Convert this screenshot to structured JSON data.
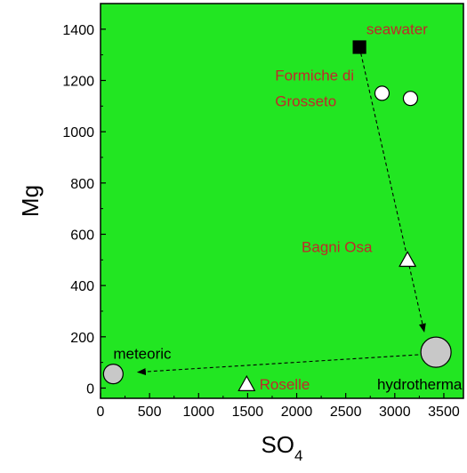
{
  "chart_data": {
    "type": "scatter",
    "title": "",
    "xlabel_main": "SO",
    "xlabel_sub": "4",
    "ylabel": "Mg",
    "xlim": [
      0,
      3700
    ],
    "ylim": [
      -40,
      1500
    ],
    "x_ticks": [
      0,
      500,
      1000,
      1500,
      2000,
      2500,
      3000,
      3500
    ],
    "y_ticks": [
      0,
      200,
      400,
      600,
      800,
      1000,
      1200,
      1400
    ],
    "grid": false,
    "background_color": "#22e622",
    "points": [
      {
        "id": "seawater",
        "x": 2640,
        "y": 1330,
        "marker": "square",
        "fill": "#000000",
        "size": "small"
      },
      {
        "id": "formiche-1",
        "x": 2870,
        "y": 1150,
        "marker": "circle",
        "fill": "#ffffff",
        "size": "small"
      },
      {
        "id": "formiche-2",
        "x": 3160,
        "y": 1130,
        "marker": "circle",
        "fill": "#ffffff",
        "size": "small"
      },
      {
        "id": "bagni-osa",
        "x": 3130,
        "y": 500,
        "marker": "triangle",
        "fill": "#ffffff",
        "size": "small"
      },
      {
        "id": "hydrothermal",
        "x": 3420,
        "y": 140,
        "marker": "circle",
        "fill": "#c8c8c8",
        "size": "large"
      },
      {
        "id": "meteoric",
        "x": 130,
        "y": 55,
        "marker": "circle",
        "fill": "#c8c8c8",
        "size": "medium"
      },
      {
        "id": "roselle",
        "x": 1490,
        "y": 15,
        "marker": "triangle",
        "fill": "#ffffff",
        "size": "small"
      }
    ],
    "arrows": [
      {
        "from": [
          2640,
          1330
        ],
        "to": [
          3300,
          220
        ],
        "style": "dashed"
      },
      {
        "from": [
          3240,
          130
        ],
        "to": [
          380,
          62
        ],
        "style": "dashed"
      }
    ],
    "annotations": [
      {
        "text": "seawater",
        "x": 2710,
        "y": 1380,
        "color": "#c0282b"
      },
      {
        "text": "Formiche di",
        "x": 1780,
        "y": 1200,
        "color": "#c0282b"
      },
      {
        "text": "Grosseto",
        "x": 1780,
        "y": 1100,
        "color": "#c0282b"
      },
      {
        "text": "Bagni Osa",
        "x": 2050,
        "y": 530,
        "color": "#c0282b"
      },
      {
        "text": "meteoric",
        "x": 130,
        "y": 115,
        "color": "#000000"
      },
      {
        "text": "Roselle",
        "x": 1620,
        "y": -5,
        "color": "#c0282b"
      },
      {
        "text": "hydrotherma",
        "x": 2820,
        "y": -5,
        "color": "#000000"
      }
    ]
  }
}
